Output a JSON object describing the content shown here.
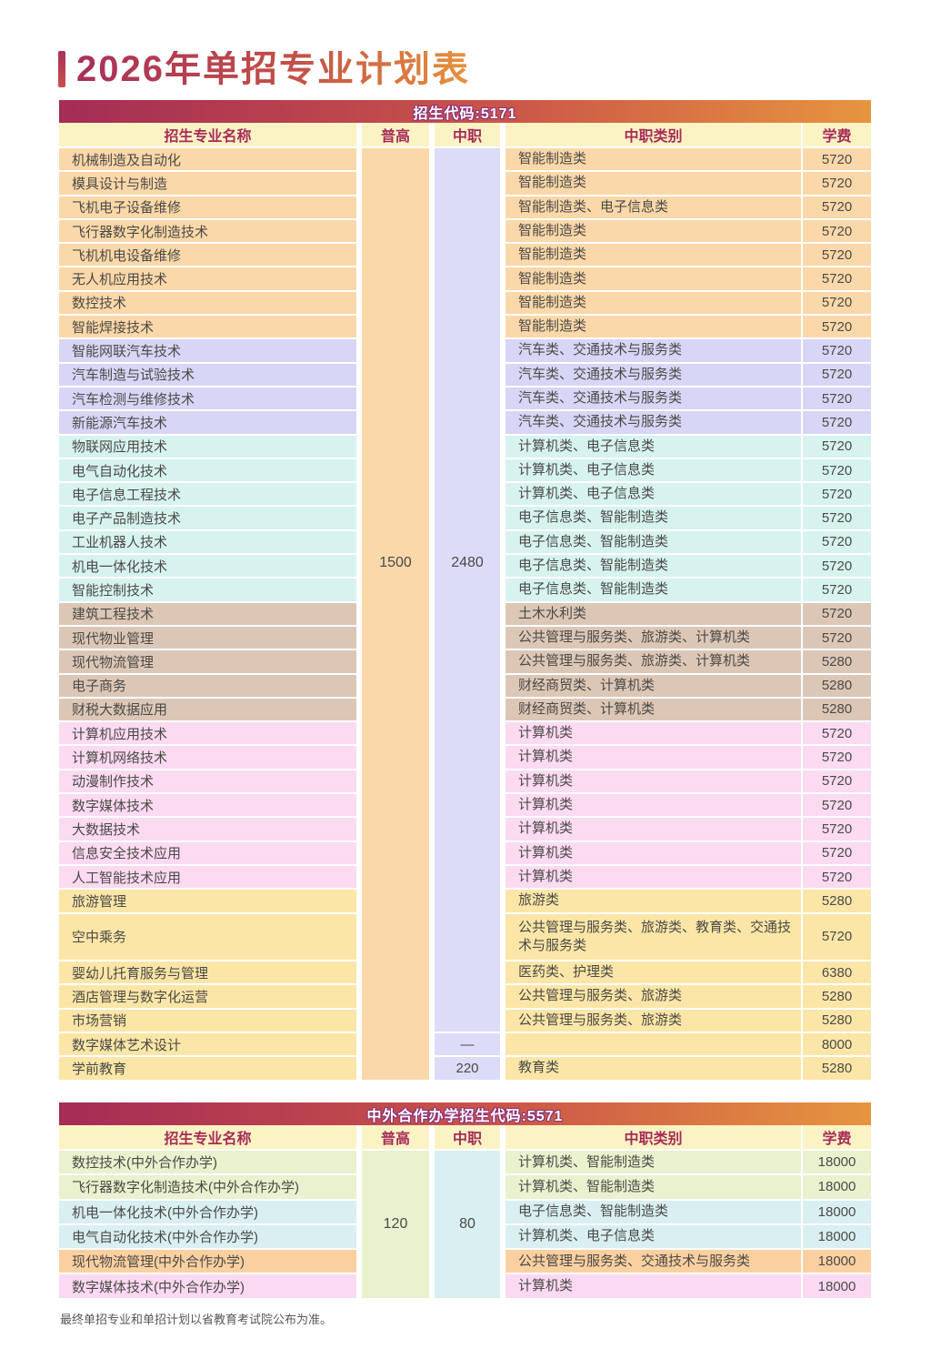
{
  "title": "2026年单招专业计划表",
  "footer": "最终单招专业和单招计划以省教育考试院公布为准。",
  "columns": {
    "name": "招生专业名称",
    "putong": "普高",
    "zhongzhi": "中职",
    "category": "中职类别",
    "fee": "学费"
  },
  "palette": {
    "accent_dark": "#a42c55",
    "accent_orange": "#e6953f",
    "header_text": "#a62b58",
    "header_bg": "#fbf3c4",
    "peach": "#fbd8a9",
    "lav": "#d7d6f6",
    "cyan": "#d7f3f0",
    "tan": "#dcc7b7",
    "pink": "#fbdaf2",
    "yellow": "#fbe6a7",
    "green2": "#e9f1ce",
    "cyan2": "#d9eff2",
    "orange2": "#fbd0a0",
    "pink2": "#fbd9f2",
    "putong_col1": "#fbd8a9",
    "zhongzhi_col1": "#dddcf8",
    "putong_col2": "#e9f1ce",
    "zhongzhi_col2": "#d9eff2"
  },
  "table1": {
    "band": "招生代码:5171",
    "putong_total": "1500",
    "zhongzhi_total": "2480",
    "rows": [
      {
        "name": "机械制造及自动化",
        "category": "智能制造类",
        "fee": "5720",
        "color": "peach"
      },
      {
        "name": "模具设计与制造",
        "category": "智能制造类",
        "fee": "5720",
        "color": "peach"
      },
      {
        "name": "飞机电子设备维修",
        "category": "智能制造类、电子信息类",
        "fee": "5720",
        "color": "peach"
      },
      {
        "name": "飞行器数字化制造技术",
        "category": "智能制造类",
        "fee": "5720",
        "color": "peach"
      },
      {
        "name": "飞机机电设备维修",
        "category": "智能制造类",
        "fee": "5720",
        "color": "peach"
      },
      {
        "name": "无人机应用技术",
        "category": "智能制造类",
        "fee": "5720",
        "color": "peach"
      },
      {
        "name": "数控技术",
        "category": "智能制造类",
        "fee": "5720",
        "color": "peach"
      },
      {
        "name": "智能焊接技术",
        "category": "智能制造类",
        "fee": "5720",
        "color": "peach"
      },
      {
        "name": "智能网联汽车技术",
        "category": "汽车类、交通技术与服务类",
        "fee": "5720",
        "color": "lav"
      },
      {
        "name": "汽车制造与试验技术",
        "category": "汽车类、交通技术与服务类",
        "fee": "5720",
        "color": "lav"
      },
      {
        "name": "汽车检测与维修技术",
        "category": "汽车类、交通技术与服务类",
        "fee": "5720",
        "color": "lav"
      },
      {
        "name": "新能源汽车技术",
        "category": "汽车类、交通技术与服务类",
        "fee": "5720",
        "color": "lav"
      },
      {
        "name": "物联网应用技术",
        "category": "计算机类、电子信息类",
        "fee": "5720",
        "color": "cyan"
      },
      {
        "name": "电气自动化技术",
        "category": "计算机类、电子信息类",
        "fee": "5720",
        "color": "cyan"
      },
      {
        "name": "电子信息工程技术",
        "category": "计算机类、电子信息类",
        "fee": "5720",
        "color": "cyan"
      },
      {
        "name": "电子产品制造技术",
        "category": "电子信息类、智能制造类",
        "fee": "5720",
        "color": "cyan"
      },
      {
        "name": "工业机器人技术",
        "category": "电子信息类、智能制造类",
        "fee": "5720",
        "color": "cyan"
      },
      {
        "name": "机电一体化技术",
        "category": "电子信息类、智能制造类",
        "fee": "5720",
        "color": "cyan"
      },
      {
        "name": "智能控制技术",
        "category": "电子信息类、智能制造类",
        "fee": "5720",
        "color": "cyan"
      },
      {
        "name": "建筑工程技术",
        "category": "土木水利类",
        "fee": "5720",
        "color": "tan"
      },
      {
        "name": "现代物业管理",
        "category": "公共管理与服务类、旅游类、计算机类",
        "fee": "5720",
        "color": "tan"
      },
      {
        "name": "现代物流管理",
        "category": "公共管理与服务类、旅游类、计算机类",
        "fee": "5280",
        "color": "tan"
      },
      {
        "name": "电子商务",
        "category": "财经商贸类、计算机类",
        "fee": "5280",
        "color": "tan"
      },
      {
        "name": "财税大数据应用",
        "category": "财经商贸类、计算机类",
        "fee": "5280",
        "color": "tan"
      },
      {
        "name": "计算机应用技术",
        "category": "计算机类",
        "fee": "5720",
        "color": "pink"
      },
      {
        "name": "计算机网络技术",
        "category": "计算机类",
        "fee": "5720",
        "color": "pink"
      },
      {
        "name": "动漫制作技术",
        "category": "计算机类",
        "fee": "5720",
        "color": "pink"
      },
      {
        "name": "数字媒体技术",
        "category": "计算机类",
        "fee": "5720",
        "color": "pink"
      },
      {
        "name": "大数据技术",
        "category": "计算机类",
        "fee": "5720",
        "color": "pink"
      },
      {
        "name": "信息安全技术应用",
        "category": "计算机类",
        "fee": "5720",
        "color": "pink"
      },
      {
        "name": "人工智能技术应用",
        "category": "计算机类",
        "fee": "5720",
        "color": "pink"
      },
      {
        "name": "旅游管理",
        "category": "旅游类",
        "fee": "5280",
        "color": "yellow"
      },
      {
        "name": "空中乘务",
        "category": "公共管理与服务类、旅游类、教育类、交通技术与服务类",
        "fee": "5720",
        "color": "yellow",
        "tall": true
      },
      {
        "name": "婴幼儿托育服务与管理",
        "category": "医药类、护理类",
        "fee": "6380",
        "color": "yellow"
      },
      {
        "name": "酒店管理与数字化运营",
        "category": "公共管理与服务类、旅游类",
        "fee": "5280",
        "color": "yellow"
      },
      {
        "name": "市场营销",
        "category": "公共管理与服务类、旅游类",
        "fee": "5280",
        "color": "yellow"
      },
      {
        "name": "数字媒体艺术设计",
        "category": "",
        "fee": "8000",
        "color": "yellow",
        "zhongzhi": "—"
      },
      {
        "name": "学前教育",
        "category": "教育类",
        "fee": "5280",
        "color": "yellow",
        "zhongzhi": "220"
      }
    ]
  },
  "table2": {
    "band": "中外合作办学招生代码:5571",
    "putong_total": "120",
    "zhongzhi_total": "80",
    "rows": [
      {
        "name": "数控技术(中外合作办学)",
        "category": "计算机类、智能制造类",
        "fee": "18000",
        "color": "green2"
      },
      {
        "name": "飞行器数字化制造技术(中外合作办学)",
        "category": "计算机类、智能制造类",
        "fee": "18000",
        "color": "green2"
      },
      {
        "name": "机电一体化技术(中外合作办学)",
        "category": "电子信息类、智能制造类",
        "fee": "18000",
        "color": "cyan2"
      },
      {
        "name": "电气自动化技术(中外合作办学)",
        "category": "计算机类、电子信息类",
        "fee": "18000",
        "color": "cyan2"
      },
      {
        "name": "现代物流管理(中外合作办学)",
        "category": "公共管理与服务类、交通技术与服务类",
        "fee": "18000",
        "color": "orange2"
      },
      {
        "name": "数字媒体技术(中外合作办学)",
        "category": "计算机类",
        "fee": "18000",
        "color": "pink2"
      }
    ]
  }
}
